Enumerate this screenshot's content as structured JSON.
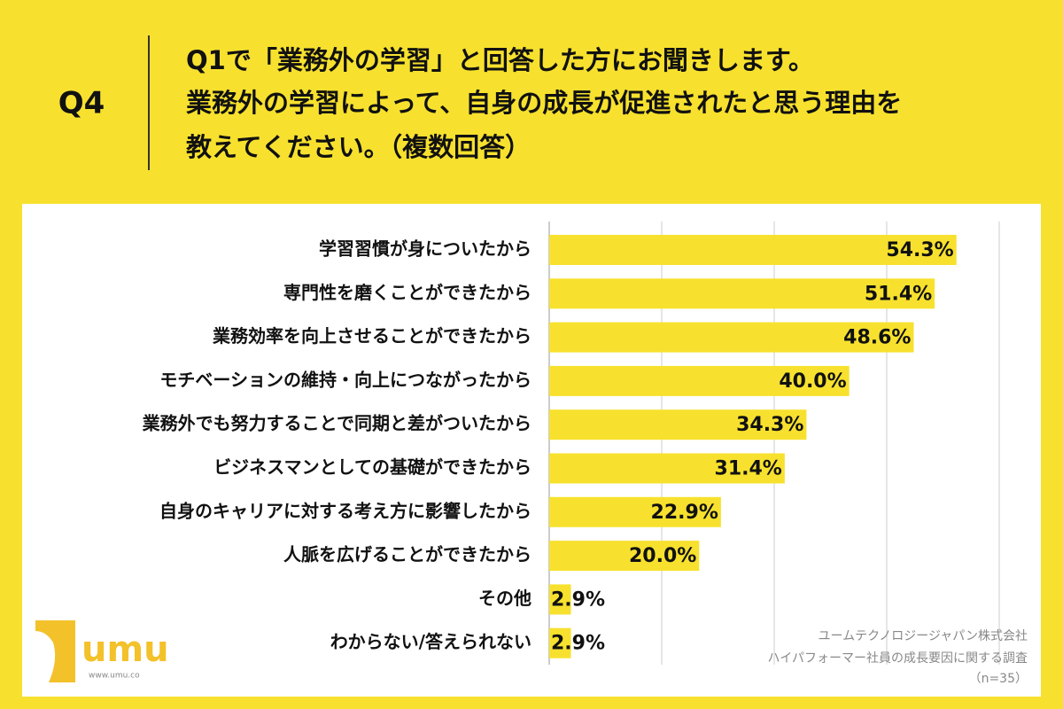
{
  "header": {
    "label": "Q4",
    "question": [
      "Q1で「業務外の学習」と回答した方にお聞きします。",
      "業務外の学習によって、自身の成長が促進されたと思う理由を",
      "教えてください。（複数回答）"
    ]
  },
  "chart_data": {
    "type": "barh",
    "categories": [
      "学習習慣が身についたから",
      "専門性を磨くことができたから",
      "業務効率を向上させることができたから",
      "モチベーションの維持・向上につながったから",
      "業務外でも努力することで同期と差がついたから",
      "ビジネスマンとしての基礎ができたから",
      "自身のキャリアに対する考え方に影響したから",
      "人脈を広げることができたから",
      "その他",
      "わからない/答えられない"
    ],
    "values": [
      54.3,
      51.4,
      48.6,
      40.0,
      34.3,
      31.4,
      22.9,
      20.0,
      2.9,
      2.9
    ],
    "value_labels": [
      "54.3%",
      "51.4%",
      "48.6%",
      "40.0%",
      "34.3%",
      "31.4%",
      "22.9%",
      "20.0%",
      "2.9%",
      "2.9%"
    ],
    "color": "#f7e12e",
    "xlim": [
      0,
      60
    ],
    "xticks": [
      0,
      15,
      30,
      45,
      60
    ],
    "grid": true
  },
  "footer": {
    "source": [
      "ユームテクノロジージャパン株式会社",
      "ハイパフォーマー社員の成長要因に関する調査",
      "（n=35）"
    ]
  },
  "logo": {
    "text": "umu",
    "url": "www.umu.co"
  }
}
